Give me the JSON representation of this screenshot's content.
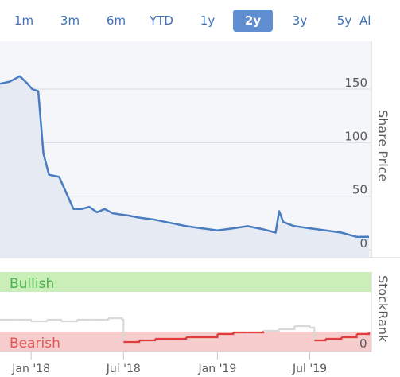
{
  "range_tabs": [
    {
      "label": "1m",
      "active": false
    },
    {
      "label": "3m",
      "active": false
    },
    {
      "label": "6m",
      "active": false
    },
    {
      "label": "YTD",
      "active": false
    },
    {
      "label": "1y",
      "active": false
    },
    {
      "label": "2y",
      "active": true
    },
    {
      "label": "3y",
      "active": false
    },
    {
      "label": "5y",
      "active": false
    },
    {
      "label": "All",
      "active": false
    }
  ],
  "colors": {
    "tab_active_bg": "#5f8fd0",
    "tab_text": "#3d72b8",
    "price_line": "#4a7cc0",
    "bullish_band": "#c9eeb8",
    "bullish_text": "#4caf50",
    "bearish_band": "#f6cccc",
    "bearish_text": "#e05555",
    "rank_line_bearish": "#e23b3b",
    "rank_line_other": "#d9d9d9"
  },
  "chart_data": [
    {
      "type": "line",
      "name": "share-price",
      "ylabel": "Share Price",
      "ylim": [
        0,
        200
      ],
      "y_ticks": [
        "150",
        "100",
        "50",
        "0"
      ],
      "x_ticks": [
        "Jan '18",
        "Jul '18",
        "Jan '19",
        "Jul '19"
      ],
      "x": [
        "2017-11-01",
        "2017-11-20",
        "2017-12-10",
        "2017-12-25",
        "2018-01-03",
        "2018-01-15",
        "2018-01-25",
        "2018-02-05",
        "2018-02-25",
        "2018-03-10",
        "2018-03-25",
        "2018-04-10",
        "2018-04-25",
        "2018-05-10",
        "2018-05-25",
        "2018-06-10",
        "2018-06-25",
        "2018-07-10",
        "2018-08-01",
        "2018-09-01",
        "2018-10-01",
        "2018-11-01",
        "2018-12-01",
        "2019-01-01",
        "2019-02-01",
        "2019-03-01",
        "2019-04-01",
        "2019-04-25",
        "2019-05-02",
        "2019-05-10",
        "2019-05-20",
        "2019-06-01",
        "2019-07-01",
        "2019-08-01",
        "2019-09-01",
        "2019-10-01",
        "2019-10-25"
      ],
      "values": [
        155,
        157,
        162,
        155,
        150,
        148,
        90,
        70,
        68,
        54,
        38,
        38,
        40,
        35,
        38,
        34,
        33,
        32,
        30,
        28,
        25,
        22,
        20,
        18,
        20,
        22,
        19,
        16,
        36,
        26,
        24,
        22,
        20,
        18,
        16,
        12,
        12
      ]
    },
    {
      "type": "line",
      "name": "stockrank",
      "ylabel": "StockRank",
      "ylim": [
        0,
        100
      ],
      "y_ticks": [
        "0"
      ],
      "bands": [
        "Bullish",
        "Bearish"
      ],
      "x": [
        "2017-11-01",
        "2017-12-01",
        "2018-01-01",
        "2018-02-01",
        "2018-03-01",
        "2018-04-01",
        "2018-05-01",
        "2018-06-01",
        "2018-06-28",
        "2018-07-01",
        "2018-08-01",
        "2018-09-01",
        "2018-10-01",
        "2018-11-01",
        "2018-12-01",
        "2019-01-01",
        "2019-02-01",
        "2019-03-01",
        "2019-04-01",
        "2019-05-01",
        "2019-06-01",
        "2019-07-01",
        "2019-07-10",
        "2019-08-01",
        "2019-09-01",
        "2019-10-01",
        "2019-10-25"
      ],
      "values": [
        40,
        40,
        38,
        40,
        38,
        40,
        40,
        42,
        40,
        12,
        14,
        16,
        16,
        18,
        18,
        22,
        24,
        24,
        26,
        28,
        32,
        30,
        14,
        16,
        18,
        22,
        24
      ],
      "bearish_threshold": 25
    }
  ]
}
